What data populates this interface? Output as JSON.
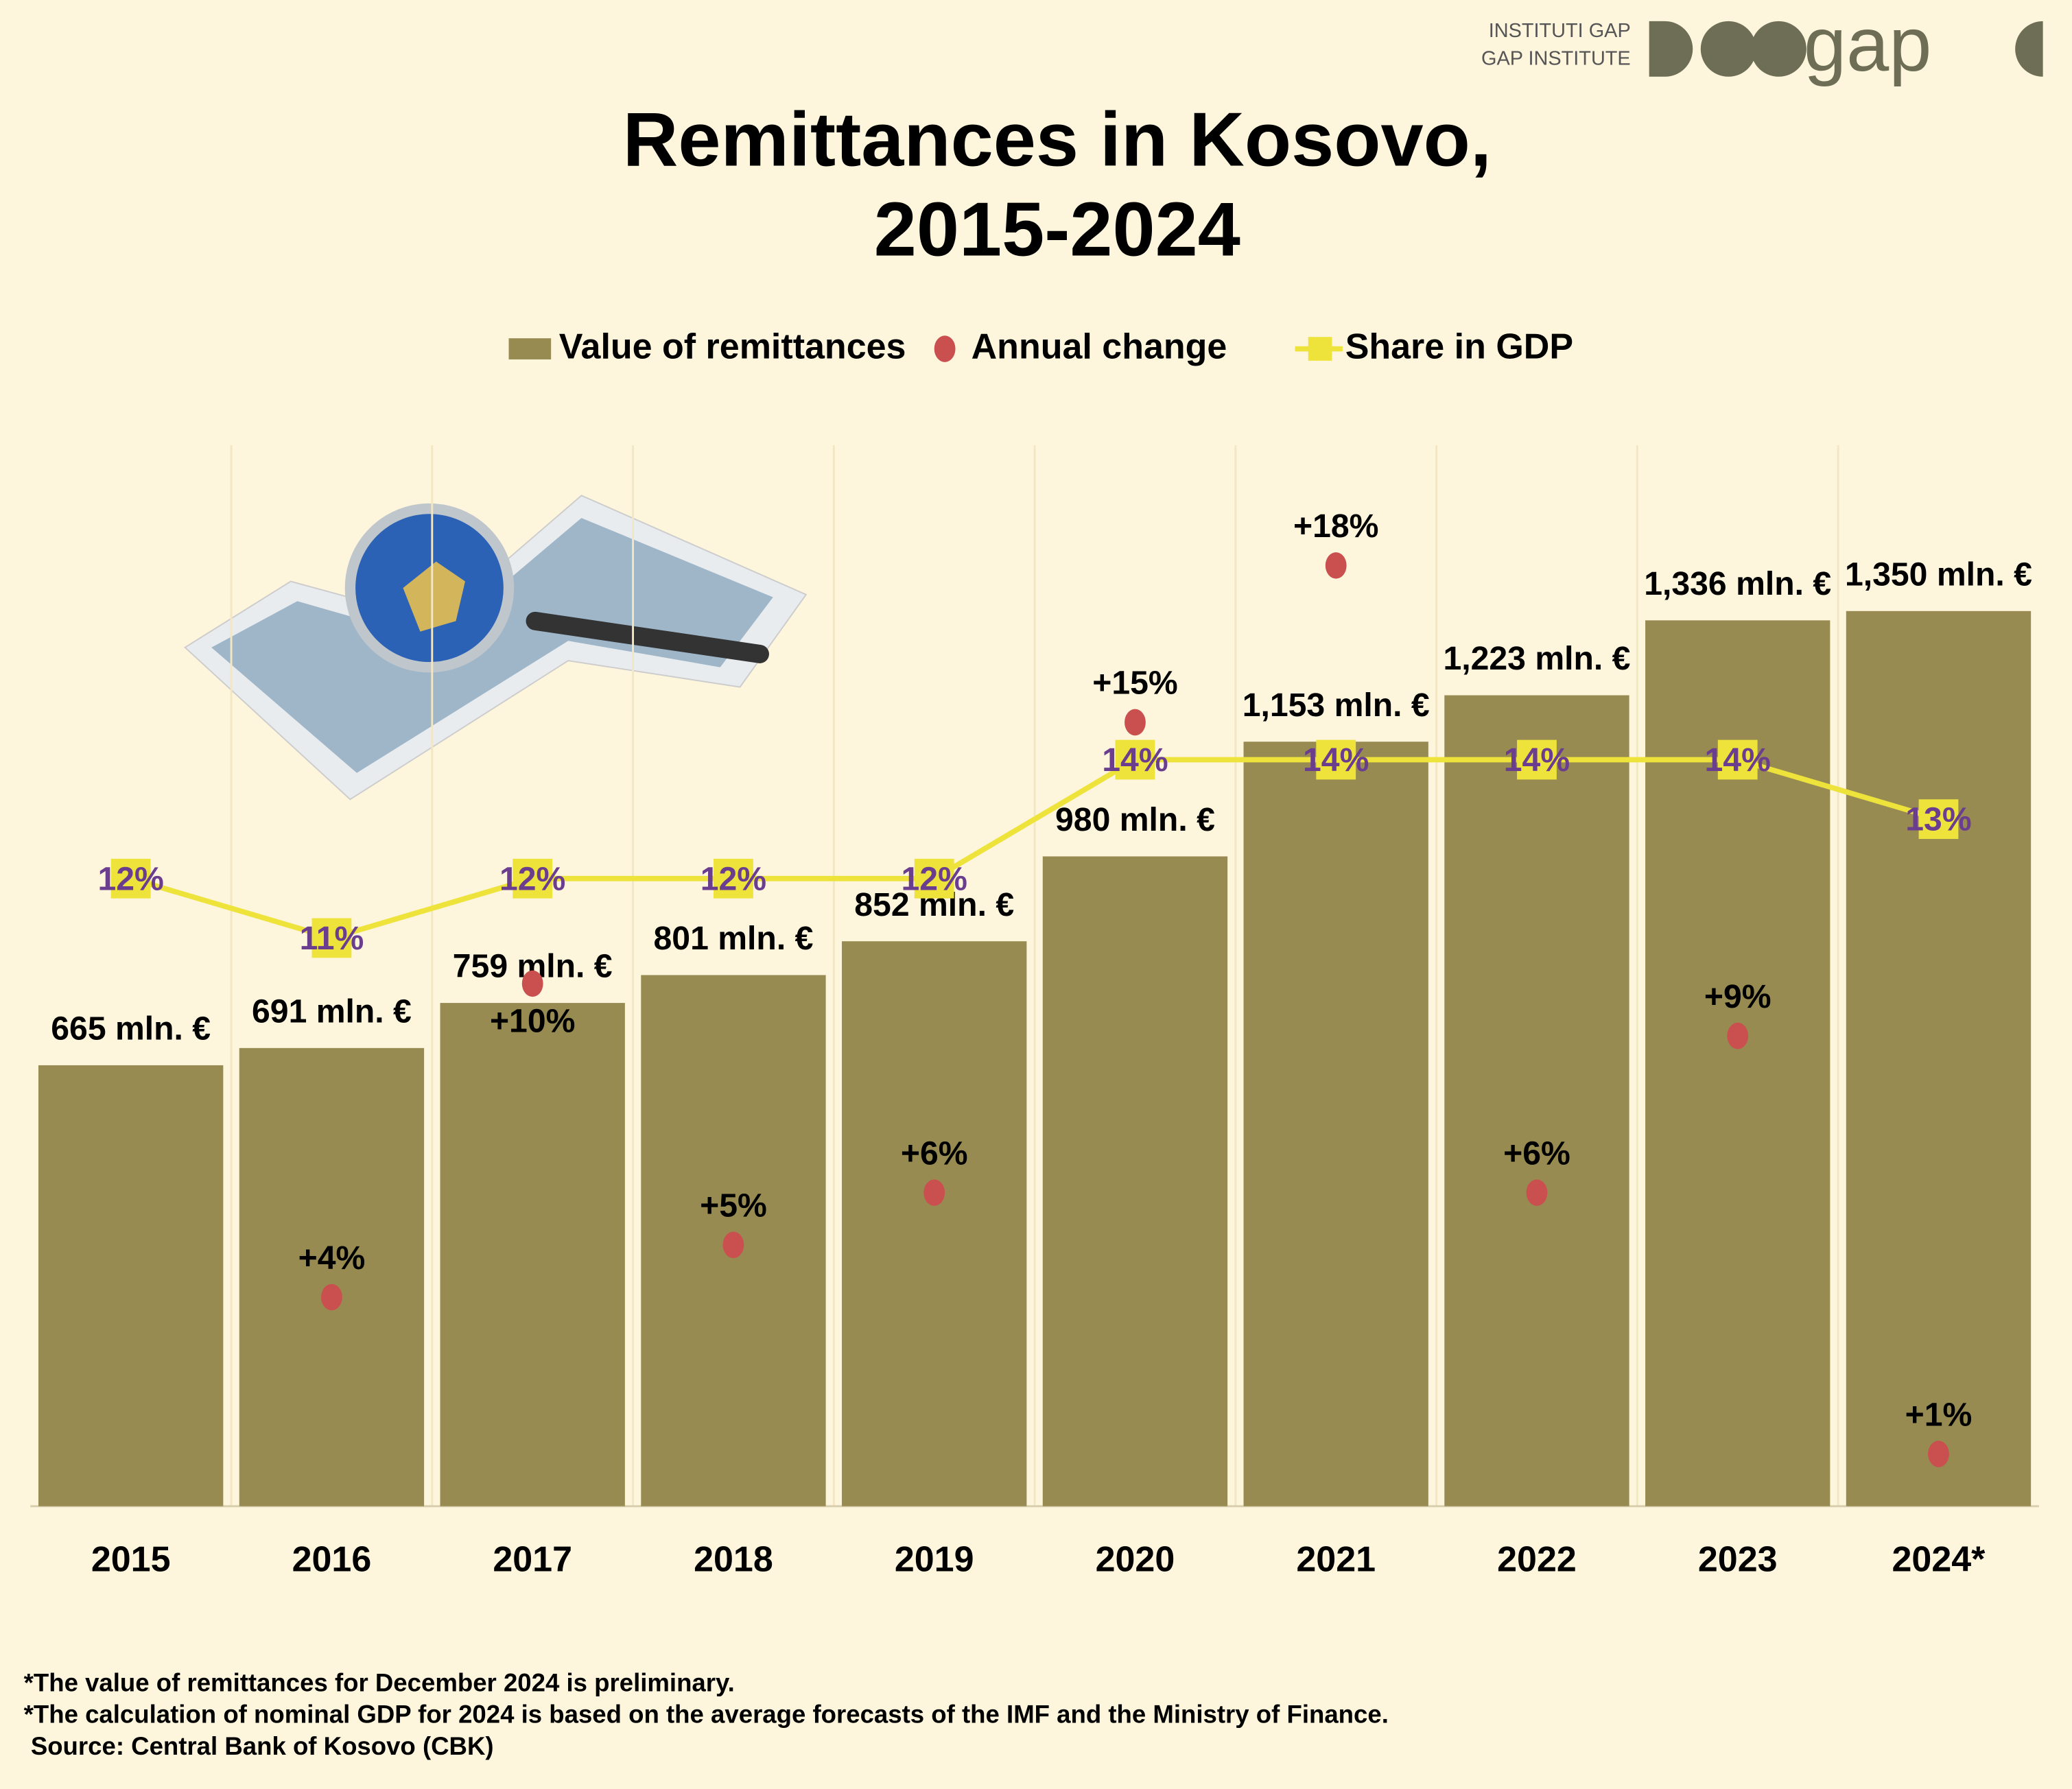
{
  "header": {
    "org_lines": [
      "INSTITUTI GAP",
      "GAP INSTITUTE"
    ],
    "logo": "gap"
  },
  "chart_data": {
    "type": "bar",
    "title": [
      "Remittances in Kosovo,",
      "2015-2024"
    ],
    "categories": [
      "2015",
      "2016",
      "2017",
      "2018",
      "2019",
      "2020",
      "2021",
      "2022",
      "2023",
      "2024*"
    ],
    "ylim": [
      0,
      1600
    ],
    "y2lim": [
      0,
      20.3
    ],
    "y3lim": [
      1.44,
      19.29
    ],
    "series": [
      {
        "name": "Value of remittances",
        "type": "bar",
        "color": "#978b52",
        "values": [
          665,
          691,
          759,
          801,
          852,
          980,
          1153,
          1223,
          1336,
          1350
        ],
        "value_labels": [
          "665 mln. €",
          "691 mln. €",
          "759 mln. €",
          "801 mln. €",
          "852 mln. €",
          "980 mln. €",
          "1,153 mln. €",
          "1,223 mln. €",
          "1,336 mln. €",
          "1,350 mln. €"
        ]
      },
      {
        "name": "Annual change",
        "type": "dot",
        "axis": "y2",
        "color": "#c9504f",
        "values": [
          null,
          4,
          10,
          5,
          6,
          15,
          18,
          6,
          9,
          1
        ],
        "value_labels": [
          null,
          "+4%",
          "+10%",
          "+5%",
          "+6%",
          "+15%",
          "+18%",
          "+6%",
          "+9%",
          "+1%"
        ]
      },
      {
        "name": "Share in GDP",
        "type": "line",
        "axis": "y3",
        "color": "#ede33a",
        "values": [
          12,
          11,
          12,
          12,
          12,
          14,
          14,
          14,
          14,
          13
        ],
        "value_labels": [
          "12%",
          "11%",
          "12%",
          "12%",
          "12%",
          "14%",
          "14%",
          "14%",
          "14%",
          "13%"
        ]
      }
    ],
    "notes": [
      "*The value of remittances for December 2024 is preliminary.",
      "*The calculation of nominal GDP for 2024 is based on the average forecasts of the IMF and the Ministry of Finance.",
      " Source: Central Bank of Kosovo (CBK)"
    ]
  }
}
